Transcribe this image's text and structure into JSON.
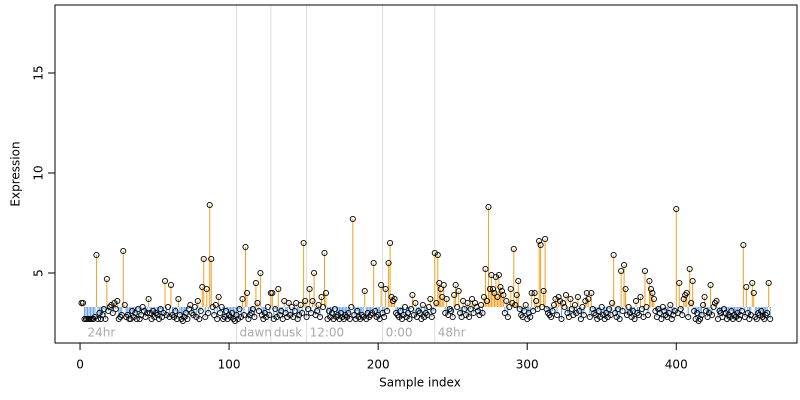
{
  "chart_data": {
    "type": "lollipop",
    "xlabel": "Sample index",
    "ylabel": "Expression",
    "xlim": [
      -16.8,
      481
    ],
    "ylim": [
      1.5,
      18.4
    ],
    "xticks": [
      0,
      100,
      200,
      300,
      400
    ],
    "yticks": [
      5,
      10,
      15
    ],
    "baseline": 3.3,
    "above_color": "#f0a020",
    "below_color": "#6a9fe0",
    "point_color": "#000000",
    "vlines": [
      105,
      128,
      152,
      203,
      238
    ],
    "annotations": [
      {
        "x": 3,
        "label": "24hr"
      },
      {
        "x": 105,
        "label": "dawn"
      },
      {
        "x": 128,
        "label": "dusk"
      },
      {
        "x": 152,
        "label": "12:00"
      },
      {
        "x": 203,
        "label": "0:00"
      },
      {
        "x": 238,
        "label": "48hr"
      }
    ],
    "values": [
      3.5,
      3.5,
      2.7,
      2.7,
      2.7,
      2.7,
      2.7,
      2.7,
      2.7,
      2.8,
      5.9,
      2.7,
      3.0,
      2.7,
      2.9,
      3.2,
      2.7,
      4.7,
      3.1,
      3.3,
      3.4,
      3.0,
      3.5,
      3.2,
      3.6,
      2.7,
      2.8,
      2.9,
      6.1,
      3.4,
      2.8,
      2.9,
      2.7,
      2.7,
      3.1,
      2.8,
      3.0,
      2.7,
      3.2,
      2.7,
      2.9,
      3.3,
      3.1,
      2.8,
      3.0,
      3.7,
      3.0,
      2.7,
      3.1,
      2.8,
      3.0,
      2.9,
      2.7,
      3.2,
      2.8,
      3.0,
      4.6,
      2.9,
      3.3,
      2.8,
      4.4,
      2.9,
      2.8,
      3.1,
      2.7,
      3.7,
      2.9,
      2.7,
      2.6,
      2.8,
      3.0,
      2.7,
      3.2,
      3.4,
      3.0,
      2.9,
      3.3,
      2.8,
      3.6,
      2.7,
      3.1,
      4.3,
      5.7,
      2.8,
      4.2,
      3.0,
      8.4,
      5.7,
      3.3,
      2.9,
      3.4,
      2.7,
      3.8,
      3.0,
      3.3,
      2.7,
      2.8,
      3.1,
      2.7,
      2.9,
      2.8,
      3.0,
      2.7,
      2.6,
      2.9,
      2.7,
      3.2,
      2.8,
      3.7,
      2.9,
      6.3,
      4.0,
      2.7,
      2.9,
      3.0,
      3.2,
      2.8,
      4.5,
      3.5,
      3.1,
      5.0,
      2.9,
      2.7,
      3.0,
      2.8,
      3.3,
      2.9,
      4.0,
      4.0,
      2.7,
      3.2,
      2.8,
      4.2,
      2.9,
      3.1,
      2.7,
      3.6,
      3.0,
      2.8,
      3.5,
      2.9,
      3.3,
      2.8,
      3.1,
      3.5,
      2.7,
      2.9,
      3.4,
      3.0,
      6.5,
      3.6,
      2.8,
      3.2,
      4.2,
      3.0,
      3.6,
      5.0,
      2.9,
      3.1,
      3.4,
      2.8,
      3.8,
      3.3,
      6.0,
      4.0,
      2.7,
      3.1,
      2.8,
      3.0,
      2.7,
      3.2,
      2.8,
      2.9,
      2.7,
      3.0,
      2.8,
      2.7,
      2.9,
      2.8,
      3.0,
      2.7,
      3.3,
      7.7,
      2.9,
      2.7,
      3.1,
      2.8,
      2.7,
      2.9,
      2.8,
      4.1,
      2.7,
      3.0,
      2.8,
      2.9,
      3.0,
      5.5,
      3.1,
      2.8,
      2.9,
      2.7,
      4.4,
      3.0,
      2.8,
      4.2,
      3.1,
      5.5,
      6.5,
      3.8,
      3.6,
      3.7,
      3.0,
      2.9,
      2.8,
      3.1,
      2.7,
      2.9,
      3.3,
      2.8,
      3.0,
      2.7,
      3.2,
      3.9,
      2.9,
      3.5,
      2.8,
      3.1,
      3.0,
      2.7,
      3.4,
      2.8,
      3.0,
      2.9,
      3.3,
      3.7,
      2.8,
      3.1,
      6.0,
      3.5,
      5.9,
      4.5,
      4.2,
      3.8,
      4.4,
      3.0,
      3.7,
      2.9,
      3.2,
      3.1,
      2.8,
      3.9,
      4.4,
      3.3,
      4.1,
      3.0,
      2.8,
      3.6,
      3.2,
      2.9,
      3.5,
      2.8,
      3.2,
      3.7,
      3.0,
      3.5,
      3.3,
      3.1,
      2.9,
      3.4,
      3.0,
      3.8,
      5.2,
      3.6,
      8.3,
      4.2,
      4.9,
      4.2,
      4.0,
      4.8,
      3.8,
      4.9,
      4.3,
      4.1,
      3.9,
      3.0,
      3.6,
      2.8,
      3.3,
      4.2,
      3.5,
      6.2,
      3.4,
      3.9,
      4.6,
      3.2,
      2.9,
      2.8,
      3.1,
      3.4,
      2.7,
      3.0,
      2.8,
      4.0,
      3.1,
      4.0,
      3.6,
      3.2,
      6.6,
      6.4,
      3.3,
      4.1,
      6.7,
      3.2,
      3.0,
      2.9,
      2.8,
      3.1,
      3.4,
      3.7,
      2.9,
      3.8,
      3.6,
      2.7,
      3.5,
      3.3,
      3.9,
      3.0,
      2.8,
      3.7,
      3.2,
      2.9,
      3.4,
      3.0,
      3.8,
      3.1,
      2.7,
      3.3,
      2.9,
      3.6,
      4.0,
      3.7,
      2.8,
      4.0,
      3.2,
      3.0,
      2.9,
      2.7,
      3.1,
      2.8,
      3.3,
      2.9,
      2.7,
      3.0,
      2.8,
      3.2,
      2.9,
      3.5,
      5.9,
      3.0,
      2.8,
      3.2,
      2.7,
      5.1,
      3.1,
      5.4,
      4.2,
      2.9,
      3.3,
      3.0,
      2.8,
      3.1,
      2.7,
      3.6,
      3.0,
      2.9,
      3.8,
      3.2,
      2.8,
      5.1,
      3.3,
      2.9,
      4.6,
      4.2,
      4.0,
      3.7,
      3.1,
      2.8,
      3.2,
      3.0,
      2.7,
      3.3,
      3.1,
      2.9,
      2.8,
      3.0,
      3.4,
      2.7,
      2.9,
      3.1,
      8.2,
      3.0,
      4.5,
      3.2,
      2.9,
      3.7,
      3.9,
      4.0,
      2.8,
      5.2,
      3.5,
      4.6,
      3.1,
      2.7,
      3.0,
      2.6,
      2.7,
      2.9,
      3.4,
      3.8,
      3.1,
      2.8,
      3.0,
      4.4,
      2.9,
      3.3,
      3.5,
      3.6,
      2.7,
      3.1,
      3.0,
      2.8,
      3.2,
      3.0,
      2.7,
      2.9,
      2.8,
      3.1,
      2.7,
      2.9,
      2.8,
      3.0,
      2.7,
      2.9,
      3.1,
      6.4,
      2.8,
      4.3,
      3.0,
      2.7,
      2.9,
      4.5,
      4.0,
      2.8,
      2.7,
      3.0,
      2.9,
      3.1,
      2.8,
      2.7,
      2.9,
      3.0,
      4.5,
      2.7
    ]
  }
}
